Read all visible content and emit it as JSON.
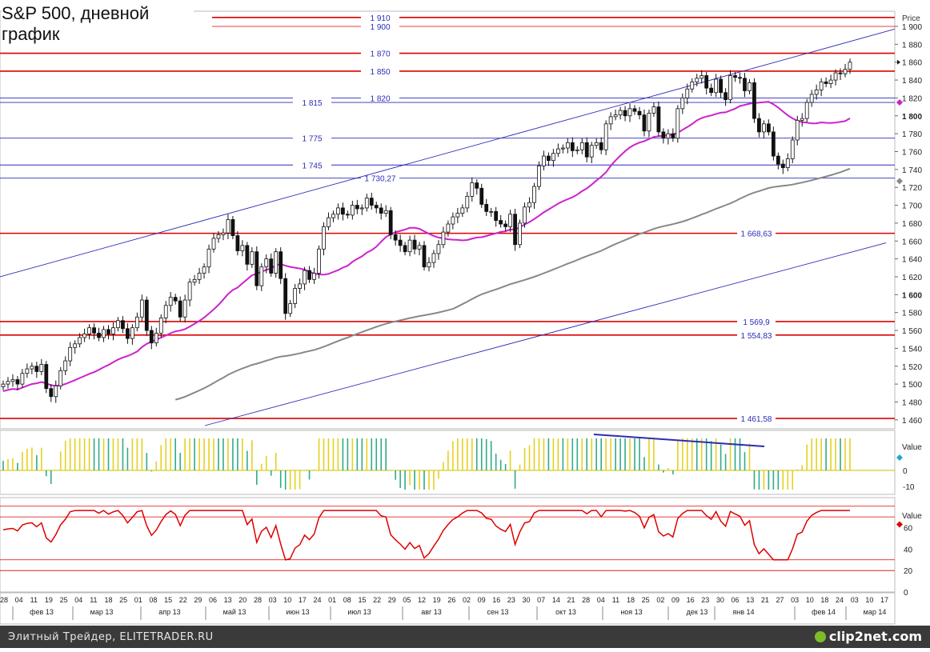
{
  "title": "S&P 500, дневной график",
  "footer": {
    "site": "Элитный Трейдер, ELITETRADER.RU",
    "logo": "clip2net.com"
  },
  "colors": {
    "level_red": "#dd0000",
    "level_blue": "#2b2bb8",
    "ma_magenta": "#cc22cc",
    "ma_gray": "#888888",
    "candle": "#111111",
    "hist_green": "#33aa88",
    "hist_yellow": "#e6d020",
    "rsi_red": "#dd0000",
    "footer_bg": "#3a3a3a"
  },
  "chart_data": [
    {
      "type": "candlestick",
      "panel": "price",
      "title": "S&P 500, дневной график",
      "ylabel": "Price",
      "ylim": [
        1450,
        1917
      ],
      "yticks": [
        1460,
        1480,
        1500,
        1520,
        1540,
        1560,
        1580,
        1600,
        1620,
        1640,
        1660,
        1680,
        1700,
        1720,
        1740,
        1760,
        1780,
        1800,
        1820,
        1840,
        1860,
        1880,
        1900
      ],
      "ytick_labels": [
        "1 460",
        "1 480",
        "1 500",
        "1 520",
        "1 540",
        "1 560",
        "1 580",
        "1 600",
        "1 620",
        "1 640",
        "1 660",
        "1 680",
        "1 700",
        "1 720",
        "1 740",
        "1 760",
        "1 780",
        "1 800",
        "1 820",
        "1 840",
        "1 860",
        "1 880",
        "1 900"
      ],
      "bold_ticks": [
        "1 600",
        "1 800"
      ],
      "x_labels": [
        "28",
        "04",
        "11",
        "19",
        "25",
        "04",
        "11",
        "18",
        "25",
        "01",
        "08",
        "15",
        "22",
        "29",
        "06",
        "13",
        "20",
        "28",
        "03",
        "10",
        "17",
        "24",
        "01",
        "08",
        "15",
        "22",
        "29",
        "05",
        "12",
        "19",
        "26",
        "02",
        "09",
        "16",
        "23",
        "30",
        "07",
        "14",
        "21",
        "28",
        "04",
        "11",
        "18",
        "25",
        "02",
        "09",
        "16",
        "23",
        "30",
        "06",
        "13",
        "21",
        "27",
        "03",
        "10",
        "18",
        "24",
        "03",
        "10",
        "17"
      ],
      "months": [
        "фев 13",
        "мар 13",
        "апр 13",
        "май 13",
        "июн 13",
        "июл 13",
        "авг 13",
        "сен 13",
        "окт 13",
        "ноя 13",
        "дек 13",
        "янв 14",
        "фев 14",
        "мар 14"
      ],
      "horizontal_levels": [
        {
          "label": "1 910",
          "value": 1910,
          "color": "red"
        },
        {
          "label": "1 900",
          "value": 1900,
          "color": "red-thin"
        },
        {
          "label": "1 870",
          "value": 1870,
          "color": "red"
        },
        {
          "label": "1 850",
          "value": 1850,
          "color": "red"
        },
        {
          "label": "1 820",
          "value": 1820,
          "color": "blue"
        },
        {
          "label": "1 815",
          "value": 1815,
          "color": "blue"
        },
        {
          "label": "1 775",
          "value": 1775,
          "color": "blue"
        },
        {
          "label": "1 745",
          "value": 1745,
          "color": "blue"
        },
        {
          "label": "1 730,27",
          "value": 1730.27,
          "color": "blue"
        },
        {
          "label": "1 668,63",
          "value": 1668.63,
          "color": "red"
        },
        {
          "label": "1 569,9",
          "value": 1569.9,
          "color": "red"
        },
        {
          "label": "1 554,83",
          "value": 1554.83,
          "color": "red"
        },
        {
          "label": "1 461,58",
          "value": 1461.58,
          "color": "red"
        }
      ],
      "trend_channel": {
        "upper": {
          "from": [
            0,
            1620
          ],
          "to": [
            1,
            1897
          ]
        },
        "lower": {
          "from": [
            0.22,
            1450
          ],
          "to": [
            0.95,
            1658
          ]
        }
      },
      "close_series": [
        1500,
        1503,
        1505,
        1500,
        1512,
        1517,
        1520,
        1514,
        1522,
        1495,
        1486,
        1498,
        1515,
        1526,
        1541,
        1545,
        1552,
        1556,
        1563,
        1557,
        1552,
        1561,
        1556,
        1563,
        1571,
        1562,
        1551,
        1563,
        1575,
        1594,
        1560,
        1546,
        1557,
        1574,
        1588,
        1597,
        1593,
        1575,
        1594,
        1614,
        1617,
        1624,
        1631,
        1651,
        1663,
        1667,
        1669,
        1684,
        1666,
        1649,
        1655,
        1634,
        1648,
        1610,
        1631,
        1640,
        1624,
        1648,
        1618,
        1579,
        1590,
        1607,
        1612,
        1627,
        1617,
        1624,
        1651,
        1676,
        1686,
        1690,
        1697,
        1690,
        1689,
        1700,
        1696,
        1697,
        1708,
        1700,
        1697,
        1691,
        1694,
        1667,
        1661,
        1655,
        1648,
        1661,
        1651,
        1655,
        1631,
        1636,
        1646,
        1656,
        1670,
        1679,
        1687,
        1691,
        1697,
        1710,
        1725,
        1719,
        1701,
        1693,
        1693,
        1683,
        1679,
        1676,
        1690,
        1656,
        1680,
        1698,
        1703,
        1721,
        1744,
        1755,
        1750,
        1758,
        1763,
        1764,
        1770,
        1761,
        1762,
        1770,
        1754,
        1767,
        1770,
        1762,
        1791,
        1799,
        1801,
        1806,
        1800,
        1808,
        1805,
        1801,
        1783,
        1803,
        1810,
        1782,
        1775,
        1780,
        1775,
        1808,
        1820,
        1830,
        1838,
        1842,
        1845,
        1831,
        1826,
        1841,
        1826,
        1818,
        1845,
        1843,
        1842,
        1828,
        1837,
        1797,
        1782,
        1791,
        1782,
        1755,
        1746,
        1742,
        1752,
        1773,
        1795,
        1797,
        1815,
        1824,
        1829,
        1838,
        1836,
        1840,
        1848,
        1847,
        1852,
        1860
      ]
    },
    {
      "type": "histogram",
      "panel": "oscillator",
      "ylabel": "Value",
      "ylim": [
        -15,
        25
      ],
      "yticks": [
        0,
        -10
      ],
      "ytick_labels": [
        "0",
        "-10"
      ],
      "divergence_note": "blue trend line on peaks"
    },
    {
      "type": "line",
      "panel": "rsi",
      "ylabel": "Value",
      "ylim": [
        0,
        88
      ],
      "yticks": [
        60,
        40,
        20,
        0
      ],
      "ytick_labels": [
        "60",
        "40",
        "20",
        "0"
      ],
      "levels": [
        70,
        30,
        20
      ]
    }
  ]
}
